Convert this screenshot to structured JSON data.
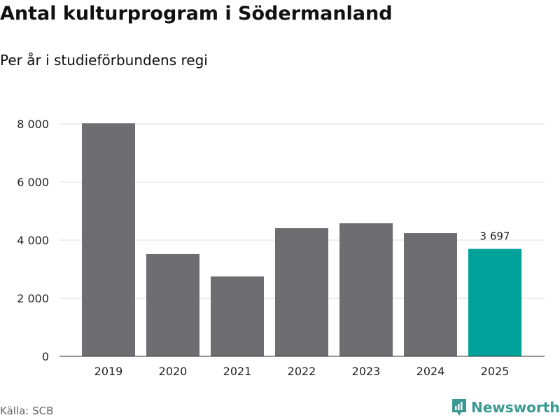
{
  "title": "Antal kulturprogram i Södermanland",
  "subtitle": "Per år i studieförbundens regi",
  "source": "Källa: SCB",
  "brand": "Newsworthy",
  "colors": {
    "bar": "#6e6d72",
    "highlight": "#00a29a",
    "grid": "#dddddd"
  },
  "chart_data": {
    "type": "bar",
    "title": "Antal kulturprogram i Södermanland",
    "subtitle": "Per år i studieförbundens regi",
    "categories": [
      "2019",
      "2020",
      "2021",
      "2022",
      "2023",
      "2024",
      "2025"
    ],
    "values": [
      8020,
      3520,
      2750,
      4410,
      4580,
      4240,
      3697
    ],
    "data_labels": {
      "2025": "3 697"
    },
    "highlight": "2025",
    "ylim": [
      0,
      8000
    ],
    "yticks": [
      0,
      2000,
      4000,
      6000,
      8000
    ],
    "ytick_labels": [
      "0",
      "2 000",
      "4 000",
      "6 000",
      "8 000"
    ],
    "grid": true,
    "xlabel": "",
    "ylabel": ""
  }
}
